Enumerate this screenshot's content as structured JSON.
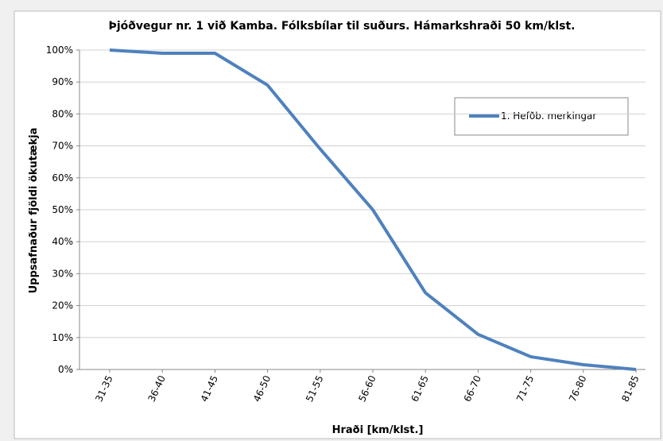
{
  "chart_data": {
    "type": "line",
    "title": "Þjóðvegur nr. 1 við Kamba. Fólksbílar til suðurs. Hámarkshraði 50 km/klst.",
    "x_label": "Hraði [km/klst.]",
    "y_label": "Uppsafnaður fjöldi ökutækja",
    "categories": [
      "31-35",
      "36-40",
      "41-45",
      "46-50",
      "51-55",
      "56-60",
      "61-65",
      "66-70",
      "71-75",
      "76-80",
      "81-85"
    ],
    "series": [
      {
        "name": "1. Hefðb. merkingar",
        "color": "#4f81bd",
        "values": [
          100,
          99,
          99,
          89,
          69,
          50,
          24,
          11,
          4,
          1.5,
          0
        ]
      }
    ],
    "ylim": [
      0,
      100
    ],
    "yticks": [
      {
        "value": 0,
        "label": "0%"
      },
      {
        "value": 10,
        "label": "10%"
      },
      {
        "value": 20,
        "label": "20%"
      },
      {
        "value": 30,
        "label": "30%"
      },
      {
        "value": 40,
        "label": "40%"
      },
      {
        "value": 50,
        "label": "50%"
      },
      {
        "value": 60,
        "label": "60%"
      },
      {
        "value": 70,
        "label": "70%"
      },
      {
        "value": 80,
        "label": "80%"
      },
      {
        "value": 90,
        "label": "90%"
      },
      {
        "value": 100,
        "label": "100%"
      }
    ],
    "grid": true,
    "legend": "upper right"
  }
}
